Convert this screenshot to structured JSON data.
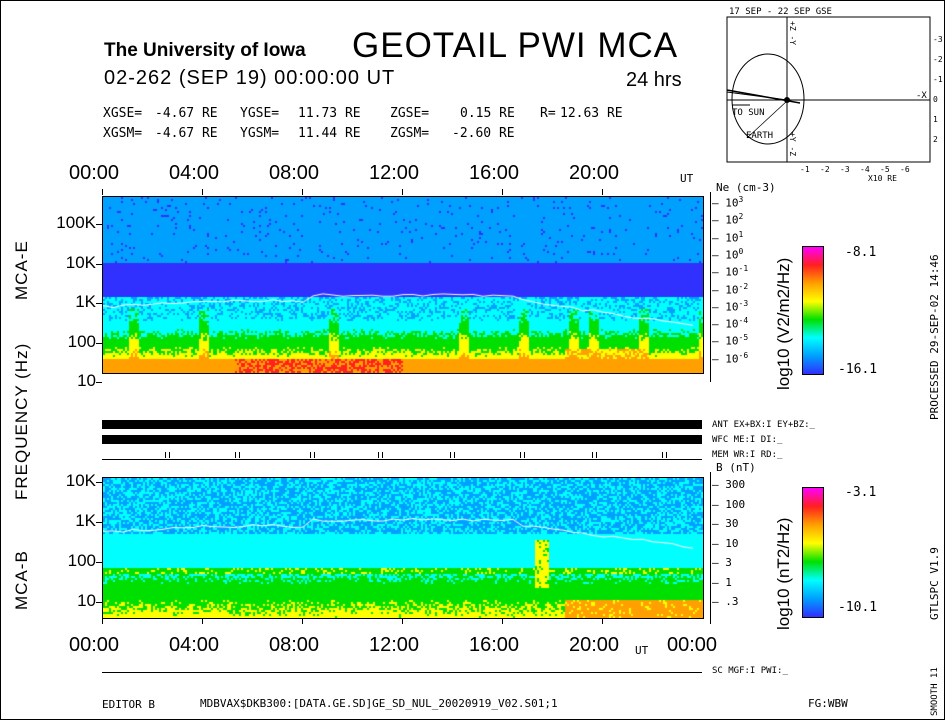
{
  "header": {
    "institution": "The University of Iowa",
    "title": "GEOTAIL PWI MCA",
    "date_line": "02-262 (SEP 19) 00:00:00 UT",
    "duration": "24 hrs",
    "gse": {
      "x_label": "XGSE=",
      "x": "-4.67 RE",
      "y_label": "YGSE=",
      "y": "11.73 RE",
      "z_label": "ZGSE=",
      "z": "0.15 RE",
      "r_label": "R=",
      "r": "12.63 RE"
    },
    "gsm": {
      "x_label": "XGSM=",
      "x": "-4.67 RE",
      "y_label": "YGSM=",
      "y": "11.44 RE",
      "z_label": "ZGSM=",
      "z": "-2.60 RE"
    }
  },
  "orbit_plot": {
    "title": "17 SEP - 22 SEP  GSE",
    "to_sun": "TO SUN",
    "earth": "EARTH",
    "x_axis_ticks": [
      "-1",
      "-2",
      "-3",
      "-4",
      "-5",
      "-6"
    ],
    "x_unit": "X10 RE",
    "y_axis_ticks": [
      "-3",
      "-2",
      "-1",
      "0",
      "1",
      "2"
    ],
    "axis_minus_x": "-X",
    "axis_top": "+Z -Y",
    "axis_bottom": "+Y -Z"
  },
  "time_axis": {
    "ticks": [
      "00:00",
      "04:00",
      "08:00",
      "12:00",
      "16:00",
      "20:00"
    ],
    "end_tick": "00:00",
    "unit": "UT"
  },
  "y_axis_title": "FREQUENCY (Hz)",
  "status": {
    "ant": "ANT EX+BX:I EY+BZ:_",
    "wfc": "WFC ME:I     DI:_",
    "mem": "MEM WR:I     RD:_",
    "sc": "SC MGF:I     PWI:_"
  },
  "footer": {
    "editor": "EDITOR B",
    "file": "MDBVAX$DKB300:[DATA.GE.SD]GE_SD_NUL_20020919_V02.S01;1",
    "fg": "FG:WBW"
  },
  "side_labels": {
    "processed": "PROCESSED 29-SEP-02  14:46",
    "version": "GTLSPC  V1.9",
    "smooth": "SMOOTH 11"
  },
  "colors": {
    "trace": "#ffffff",
    "colormap": [
      "#3030ff",
      "#00a0ff",
      "#00ffff",
      "#00e000",
      "#ffff00",
      "#ffa000",
      "#ff2020",
      "#ff00ff"
    ]
  },
  "chart_data": [
    {
      "type": "heatmap",
      "panel": "MCA-E",
      "ylabel": "MCA-E",
      "y_scale": "log",
      "y_ticks": [
        "100K",
        "10K",
        "1K",
        "100",
        "10"
      ],
      "x_ticks": [
        "00:00",
        "04:00",
        "08:00",
        "12:00",
        "16:00",
        "20:00"
      ],
      "right_axis": {
        "label": "Ne (cm-3)",
        "ticks": [
          "10^3",
          "10^2",
          "10^1",
          "10^0",
          "10^-1",
          "10^-2",
          "10^-3",
          "10^-4",
          "10^-5",
          "10^-6"
        ]
      },
      "colorbar": {
        "label": "log10 (V2/m2/Hz)",
        "max": "-8.1",
        "min": "-16.1"
      },
      "trace_frequency_hz_approx": {
        "x": [
          "00:00",
          "02:00",
          "04:00",
          "08:00",
          "12:00",
          "16:00",
          "18:00",
          "20:00",
          "22:00",
          "24:00"
        ],
        "y": [
          700,
          1100,
          1200,
          900,
          1500,
          1600,
          900,
          800,
          600,
          250
        ]
      }
    },
    {
      "type": "heatmap",
      "panel": "MCA-B",
      "ylabel": "MCA-B",
      "y_scale": "log",
      "y_ticks": [
        "10K",
        "1K",
        "100",
        "10"
      ],
      "x_ticks": [
        "00:00",
        "04:00",
        "08:00",
        "12:00",
        "16:00",
        "20:00",
        "00:00"
      ],
      "right_axis": {
        "label": "B (nT)",
        "ticks": [
          "300",
          "100",
          "30",
          "10",
          "3",
          "1",
          ".3"
        ]
      },
      "colorbar": {
        "label": "log10 (nT2/Hz)",
        "max": "-3.1",
        "min": "-10.1"
      }
    }
  ]
}
